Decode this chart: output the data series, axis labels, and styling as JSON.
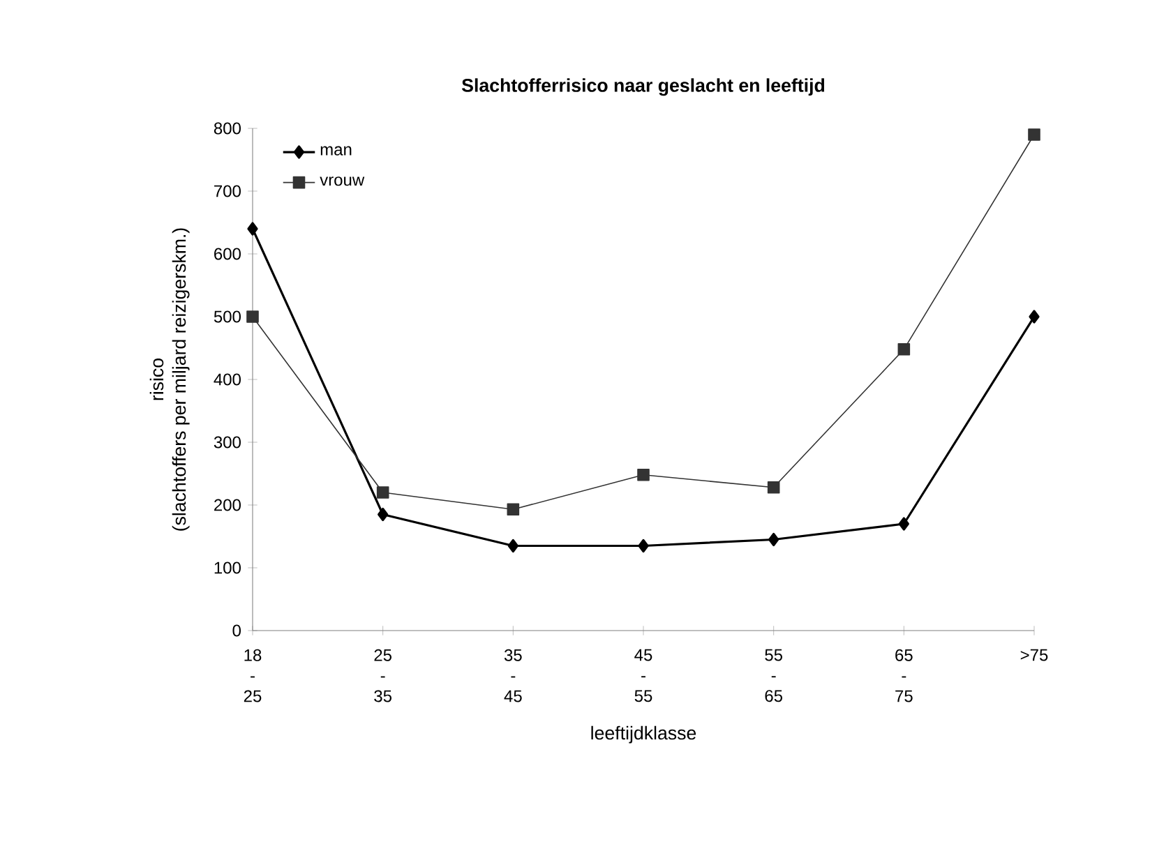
{
  "chart_data": {
    "type": "line",
    "title": "Slachtofferrisico naar geslacht en leeftijd",
    "xlabel": "leeftijdklasse",
    "ylabel": "risico\n(slachtoffers per miljard reizigerskm.)",
    "categories": [
      "18 - 25",
      "25 - 35",
      "35 - 45",
      "45 - 55",
      "55 - 65",
      "65 - 75",
      ">75"
    ],
    "series": [
      {
        "name": "man",
        "color": "#000000",
        "marker": "diamond",
        "values": [
          640,
          185,
          135,
          135,
          145,
          170,
          500
        ]
      },
      {
        "name": "vrouw",
        "color": "#333333",
        "marker": "square",
        "values": [
          500,
          220,
          193,
          248,
          228,
          448,
          790
        ]
      }
    ],
    "ylim": [
      0,
      800
    ],
    "yticks": [
      0,
      100,
      200,
      300,
      400,
      500,
      600,
      700,
      800
    ],
    "legend": "top left",
    "grid": false
  }
}
